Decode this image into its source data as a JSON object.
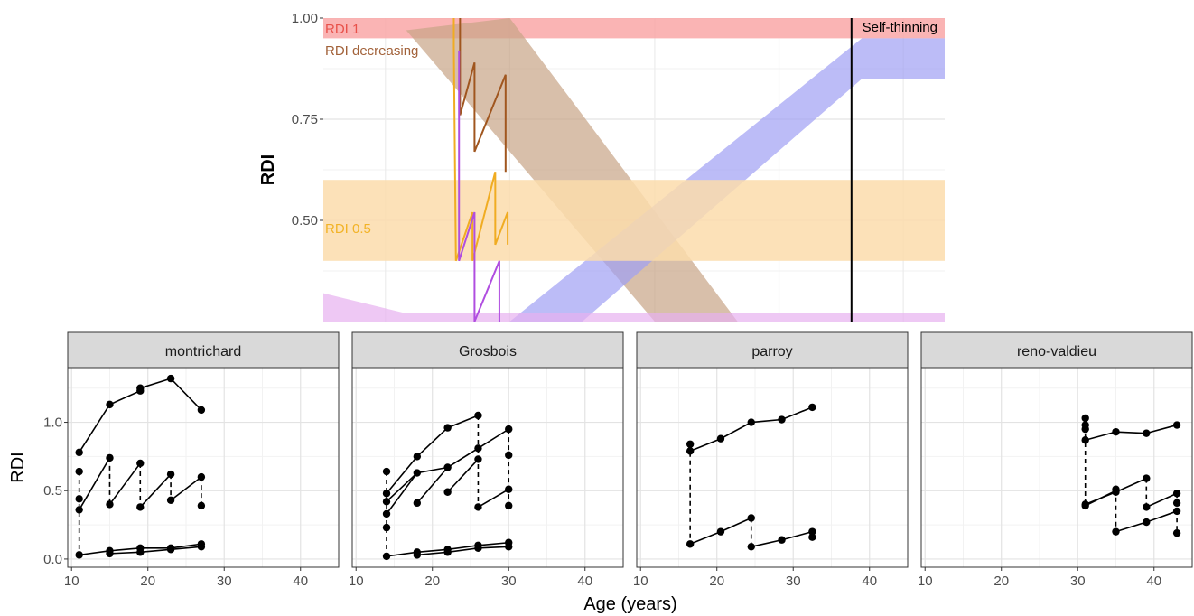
{
  "figure": {
    "x_title": "Age (years)"
  },
  "chart_data": [
    {
      "type": "line",
      "ylabel": "RDI",
      "ylim": [
        0.25,
        1.0
      ],
      "yticks": [
        0.5,
        0.75,
        1.0
      ],
      "ytick_labels": [
        "0.50",
        "0.75",
        "1.00"
      ],
      "xlim": [
        11,
        41
      ],
      "grid": true,
      "bands": [
        {
          "label": "RDI 1",
          "y": [
            0.95,
            1.0
          ],
          "color": "#f9a7a7",
          "text_color": "#e8514a"
        },
        {
          "label": "RDI decreasing",
          "poly": [
            [
              15,
              0.97
            ],
            [
              20,
              1.0
            ],
            [
              31,
              0.25
            ],
            [
              27,
              0.25
            ]
          ],
          "color": "#c7a486",
          "text_color": "#a2623a"
        },
        {
          "label": "Self-thinning",
          "poly": [
            [
              20,
              0.25
            ],
            [
              23.5,
              0.25
            ],
            [
              37,
              0.85
            ],
            [
              41,
              0.85
            ],
            [
              41,
              0.95
            ],
            [
              37,
              0.95
            ]
          ],
          "color": "#9f9ff3",
          "text_color": "#000000"
        },
        {
          "label": "RDI 0.5",
          "y": [
            0.4,
            0.6
          ],
          "color": "#fbdcac",
          "text_color": "#f2b327"
        },
        {
          "label": "",
          "poly": [
            [
              11,
              0.32
            ],
            [
              15,
              0.27
            ],
            [
              41,
              0.27
            ],
            [
              41,
              0.25
            ],
            [
              11,
              0.25
            ]
          ],
          "color": "#e7b1ef",
          "text_color": ""
        }
      ],
      "vline": {
        "x": 36.5,
        "color": "#000000"
      },
      "series": [
        {
          "color": "#a0561f",
          "x": [
            17.6,
            17.6,
            18.3,
            18.3,
            19.8,
            19.8
          ],
          "values": [
            1.0,
            0.76,
            0.89,
            0.67,
            0.86,
            0.62
          ]
        },
        {
          "color": "#f0ac22",
          "x": [
            17.3,
            17.3,
            17.4,
            18.2,
            18.2,
            19.3,
            19.3,
            19.9,
            19.9
          ],
          "values": [
            1.0,
            0.93,
            0.4,
            0.52,
            0.4,
            0.62,
            0.44,
            0.52,
            0.44
          ]
        },
        {
          "color": "#b04ee0",
          "x": [
            17.55,
            17.55,
            18.3,
            18.3,
            19.5,
            19.5
          ],
          "values": [
            0.92,
            0.4,
            0.52,
            0.25,
            0.4,
            0.25
          ]
        }
      ]
    },
    {
      "type": "scatter",
      "panel": "montrichard",
      "ylabel": "RDI",
      "xlim": [
        9.5,
        45
      ],
      "ylim": [
        -0.06,
        1.4
      ],
      "xticks": [
        10,
        20,
        30,
        40
      ],
      "xtick_labels": [
        "10",
        "20",
        "30",
        "40"
      ],
      "yticks": [
        0,
        0.5,
        1.0
      ],
      "ytick_labels": [
        "0.0",
        "0.5",
        "1.0"
      ],
      "segments": [
        {
          "x": [
            11,
            15,
            19,
            19,
            23,
            27
          ],
          "y": [
            0.78,
            1.13,
            1.23,
            1.25,
            1.32,
            1.09
          ]
        },
        {
          "x": [
            11,
            15
          ],
          "y": [
            0.36,
            0.74
          ]
        },
        {
          "x": [
            15,
            19
          ],
          "y": [
            0.4,
            0.7
          ]
        },
        {
          "x": [
            19,
            23
          ],
          "y": [
            0.38,
            0.62
          ]
        },
        {
          "x": [
            23,
            27
          ],
          "y": [
            0.43,
            0.6
          ]
        },
        {
          "x": [
            11,
            15,
            19,
            23,
            27
          ],
          "y": [
            0.03,
            0.06,
            0.08,
            0.08,
            0.11
          ]
        },
        {
          "x": [
            15,
            19,
            23,
            27
          ],
          "y": [
            0.04,
            0.05,
            0.07,
            0.09
          ]
        }
      ],
      "dashed": [
        {
          "x": 11,
          "y": [
            0.64,
            0.03
          ]
        },
        {
          "x": 15,
          "y": [
            0.74,
            0.4
          ]
        },
        {
          "x": 19,
          "y": [
            0.7,
            0.38
          ]
        },
        {
          "x": 23,
          "y": [
            0.62,
            0.43
          ]
        },
        {
          "x": 27,
          "y": [
            0.6,
            0.39
          ]
        }
      ],
      "points": [
        [
          11,
          0.78
        ],
        [
          11,
          0.64
        ],
        [
          11,
          0.44
        ],
        [
          11,
          0.36
        ],
        [
          11,
          0.03
        ],
        [
          15,
          1.13
        ],
        [
          15,
          0.74
        ],
        [
          15,
          0.4
        ],
        [
          15,
          0.06
        ],
        [
          15,
          0.04
        ],
        [
          19,
          1.25
        ],
        [
          19,
          1.23
        ],
        [
          19,
          0.7
        ],
        [
          19,
          0.38
        ],
        [
          19,
          0.08
        ],
        [
          19,
          0.05
        ],
        [
          23,
          1.32
        ],
        [
          23,
          0.62
        ],
        [
          23,
          0.43
        ],
        [
          23,
          0.08
        ],
        [
          23,
          0.07
        ],
        [
          27,
          1.09
        ],
        [
          27,
          0.6
        ],
        [
          27,
          0.39
        ],
        [
          27,
          0.11
        ],
        [
          27,
          0.09
        ]
      ]
    },
    {
      "type": "scatter",
      "panel": "Grosbois",
      "xlim": [
        9.5,
        45
      ],
      "ylim": [
        -0.06,
        1.4
      ],
      "xticks": [
        10,
        20,
        30,
        40
      ],
      "xtick_labels": [
        "10",
        "20",
        "30",
        "40"
      ],
      "segments": [
        {
          "x": [
            14,
            18,
            22,
            26
          ],
          "y": [
            0.48,
            0.75,
            0.96,
            1.05
          ]
        },
        {
          "x": [
            14,
            18
          ],
          "y": [
            0.42,
            0.63
          ]
        },
        {
          "x": [
            18,
            22
          ],
          "y": [
            0.41,
            0.67
          ]
        },
        {
          "x": [
            22,
            26
          ],
          "y": [
            0.49,
            0.73
          ]
        },
        {
          "x": [
            14,
            18,
            22,
            26,
            30
          ],
          "y": [
            0.33,
            0.63,
            0.67,
            0.81,
            0.95
          ]
        },
        {
          "x": [
            26,
            30
          ],
          "y": [
            0.38,
            0.51
          ]
        },
        {
          "x": [
            14,
            18,
            22,
            26,
            30
          ],
          "y": [
            0.02,
            0.05,
            0.07,
            0.1,
            0.12
          ]
        },
        {
          "x": [
            18,
            22,
            26,
            30
          ],
          "y": [
            0.03,
            0.05,
            0.08,
            0.09
          ]
        }
      ],
      "dashed": [
        {
          "x": 14,
          "y": [
            0.64,
            0.02
          ]
        },
        {
          "x": 26,
          "y": [
            1.05,
            0.38
          ]
        },
        {
          "x": 30,
          "y": [
            0.95,
            0.39
          ]
        }
      ],
      "points": [
        [
          14,
          0.64
        ],
        [
          14,
          0.48
        ],
        [
          14,
          0.42
        ],
        [
          14,
          0.33
        ],
        [
          14,
          0.23
        ],
        [
          14,
          0.02
        ],
        [
          18,
          0.75
        ],
        [
          18,
          0.63
        ],
        [
          18,
          0.41
        ],
        [
          18,
          0.05
        ],
        [
          18,
          0.03
        ],
        [
          22,
          0.96
        ],
        [
          22,
          0.67
        ],
        [
          22,
          0.49
        ],
        [
          22,
          0.07
        ],
        [
          22,
          0.05
        ],
        [
          26,
          1.05
        ],
        [
          26,
          0.81
        ],
        [
          26,
          0.73
        ],
        [
          26,
          0.38
        ],
        [
          26,
          0.1
        ],
        [
          26,
          0.08
        ],
        [
          30,
          0.95
        ],
        [
          30,
          0.76
        ],
        [
          30,
          0.51
        ],
        [
          30,
          0.39
        ],
        [
          30,
          0.12
        ],
        [
          30,
          0.09
        ]
      ]
    },
    {
      "type": "scatter",
      "panel": "parroy",
      "xlim": [
        9.5,
        45
      ],
      "ylim": [
        -0.06,
        1.4
      ],
      "xticks": [
        10,
        20,
        30,
        40
      ],
      "xtick_labels": [
        "10",
        "20",
        "30",
        "40"
      ],
      "segments": [
        {
          "x": [
            16.5,
            20.5,
            24.5,
            28.5,
            32.5
          ],
          "y": [
            0.79,
            0.88,
            1.0,
            1.02,
            1.11
          ]
        },
        {
          "x": [
            16.5,
            20.5,
            24.5
          ],
          "y": [
            0.11,
            0.2,
            0.3
          ]
        },
        {
          "x": [
            24.5,
            28.5,
            32.5
          ],
          "y": [
            0.09,
            0.14,
            0.2
          ]
        }
      ],
      "dashed": [
        {
          "x": 16.5,
          "y": [
            0.84,
            0.11
          ]
        },
        {
          "x": 24.5,
          "y": [
            0.3,
            0.09
          ]
        },
        {
          "x": 32.5,
          "y": [
            0.2,
            0.16
          ]
        }
      ],
      "points": [
        [
          16.5,
          0.84
        ],
        [
          16.5,
          0.79
        ],
        [
          16.5,
          0.11
        ],
        [
          20.5,
          0.88
        ],
        [
          20.5,
          0.2
        ],
        [
          24.5,
          1.0
        ],
        [
          24.5,
          0.3
        ],
        [
          24.5,
          0.09
        ],
        [
          28.5,
          1.02
        ],
        [
          28.5,
          0.14
        ],
        [
          32.5,
          1.11
        ],
        [
          32.5,
          0.2
        ],
        [
          32.5,
          0.16
        ]
      ]
    },
    {
      "type": "scatter",
      "panel": "reno-valdieu",
      "xlim": [
        9.5,
        45
      ],
      "ylim": [
        -0.06,
        1.4
      ],
      "xticks": [
        10,
        20,
        30,
        40
      ],
      "xtick_labels": [
        "10",
        "20",
        "30",
        "40"
      ],
      "segments": [
        {
          "x": [
            31,
            35,
            39,
            43
          ],
          "y": [
            0.87,
            0.93,
            0.92,
            0.98
          ]
        },
        {
          "x": [
            31,
            35
          ],
          "y": [
            0.39,
            0.5
          ]
        },
        {
          "x": [
            31,
            35,
            39
          ],
          "y": [
            0.4,
            0.49,
            0.59
          ]
        },
        {
          "x": [
            35,
            39,
            43
          ],
          "y": [
            0.2,
            0.27,
            0.35
          ]
        },
        {
          "x": [
            39,
            43
          ],
          "y": [
            0.38,
            0.48
          ]
        }
      ],
      "dashed": [
        {
          "x": 31,
          "y": [
            1.03,
            0.39
          ]
        },
        {
          "x": 35,
          "y": [
            0.51,
            0.2
          ]
        },
        {
          "x": 39,
          "y": [
            0.59,
            0.38
          ]
        },
        {
          "x": 43,
          "y": [
            0.48,
            0.19
          ]
        }
      ],
      "points": [
        [
          31,
          1.03
        ],
        [
          31,
          0.98
        ],
        [
          31,
          0.95
        ],
        [
          31,
          0.87
        ],
        [
          31,
          0.4
        ],
        [
          31,
          0.39
        ],
        [
          35,
          0.93
        ],
        [
          35,
          0.51
        ],
        [
          35,
          0.49
        ],
        [
          35,
          0.2
        ],
        [
          39,
          0.92
        ],
        [
          39,
          0.59
        ],
        [
          39,
          0.38
        ],
        [
          39,
          0.27
        ],
        [
          43,
          0.98
        ],
        [
          43,
          0.48
        ],
        [
          43,
          0.41
        ],
        [
          43,
          0.35
        ],
        [
          43,
          0.19
        ]
      ]
    }
  ]
}
